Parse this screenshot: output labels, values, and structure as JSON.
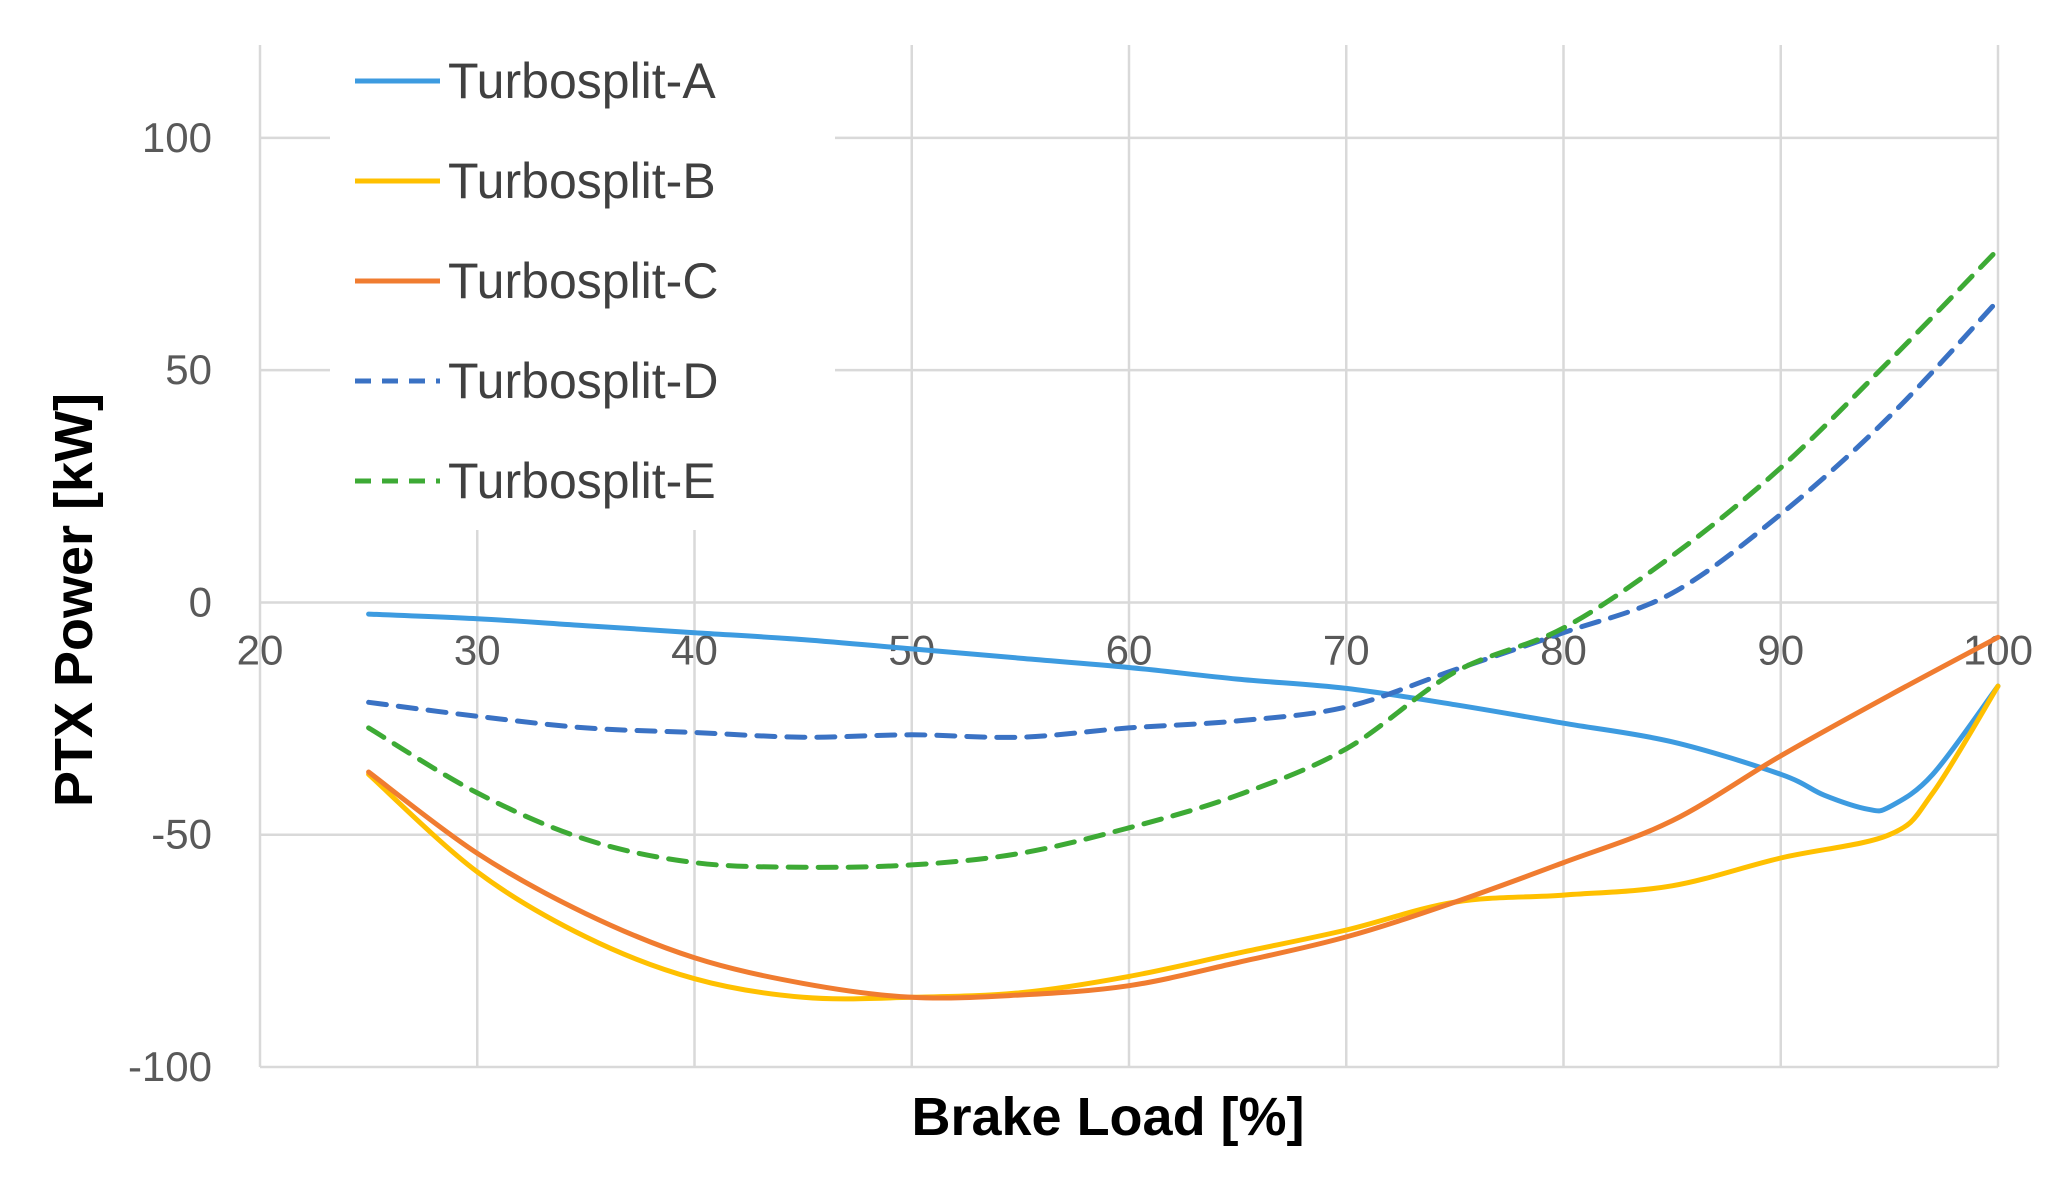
{
  "chart_data": {
    "type": "line",
    "title": "",
    "xlabel": "Brake Load [%]",
    "ylabel": "PTX Power [kW]",
    "xlim": [
      20,
      100
    ],
    "ylim": [
      -100,
      120
    ],
    "x_ticks": [
      20,
      30,
      40,
      50,
      60,
      70,
      80,
      90,
      100
    ],
    "y_ticks": [
      -100,
      -50,
      0,
      50,
      100
    ],
    "grid": true,
    "legend_position": "top-left",
    "series": [
      {
        "name": "Turbosplit-A",
        "color": "#3d9be0",
        "dashed": false,
        "x": [
          25,
          30,
          35,
          40,
          45,
          50,
          55,
          60,
          65,
          70,
          75,
          80,
          85,
          90,
          92,
          94,
          95,
          97,
          100
        ],
        "y": [
          -2.5,
          -3.5,
          -5,
          -6.5,
          -8,
          -10,
          -12,
          -14,
          -16.5,
          -18.5,
          -22,
          -26,
          -30,
          -37,
          -41.5,
          -44.5,
          -44,
          -37,
          -18
        ]
      },
      {
        "name": "Turbosplit-B",
        "color": "#ffc000",
        "dashed": false,
        "x": [
          25,
          30,
          35,
          40,
          45,
          50,
          55,
          60,
          65,
          70,
          75,
          80,
          85,
          90,
          95,
          97,
          100
        ],
        "y": [
          -37,
          -58,
          -72,
          -81,
          -85,
          -85,
          -84,
          -80.5,
          -75.5,
          -70.5,
          -64.5,
          -63,
          -61,
          -55,
          -50,
          -41,
          -18
        ]
      },
      {
        "name": "Turbosplit-C",
        "color": "#f07c30",
        "dashed": false,
        "x": [
          25,
          30,
          35,
          40,
          45,
          50,
          55,
          60,
          65,
          70,
          75,
          80,
          85,
          90,
          95,
          100
        ],
        "y": [
          -36.5,
          -54,
          -67,
          -76.5,
          -82,
          -85,
          -84.5,
          -82.5,
          -77.5,
          -72,
          -64.5,
          -56,
          -47,
          -33,
          -20,
          -7.5
        ]
      },
      {
        "name": "Turbosplit-D",
        "color": "#3a72c4",
        "dashed": true,
        "x": [
          25,
          30,
          35,
          40,
          45,
          50,
          55,
          60,
          65,
          70,
          75,
          80,
          85,
          90,
          95,
          100
        ],
        "y": [
          -21.5,
          -24.5,
          -27,
          -28,
          -29,
          -28.5,
          -29,
          -27,
          -25.5,
          -22.5,
          -14.5,
          -6.5,
          2,
          19,
          40,
          65
        ]
      },
      {
        "name": "Turbosplit-E",
        "color": "#3daa35",
        "dashed": true,
        "x": [
          25,
          30,
          35,
          40,
          45,
          50,
          55,
          60,
          65,
          70,
          75,
          80,
          85,
          90,
          95,
          100
        ],
        "y": [
          -27,
          -41,
          -51,
          -56,
          -57,
          -56.5,
          -54,
          -48.5,
          -41.5,
          -31.5,
          -15,
          -5.5,
          10,
          29,
          52,
          76
        ]
      }
    ]
  }
}
